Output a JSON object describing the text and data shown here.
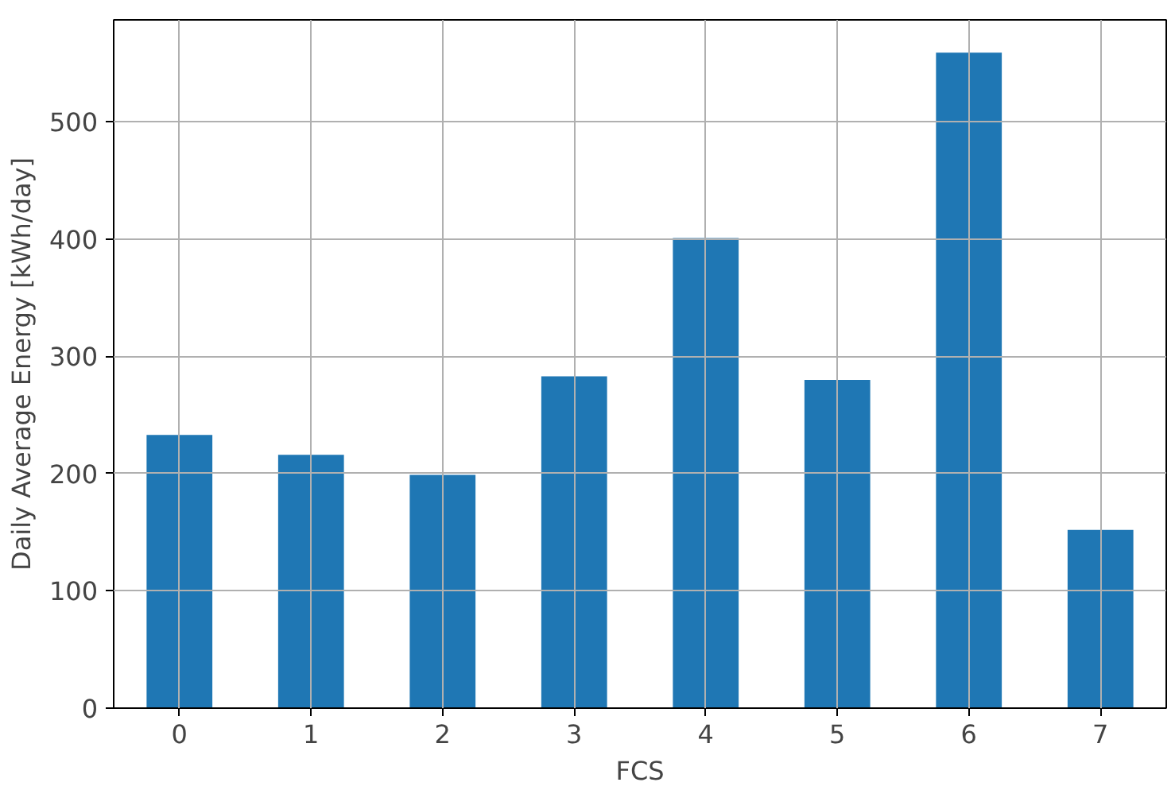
{
  "chart_data": {
    "type": "bar",
    "xlabel": "FCS",
    "ylabel": "Daily Average Energy [kWh/day]",
    "categories": [
      "0",
      "1",
      "2",
      "3",
      "4",
      "5",
      "6",
      "7"
    ],
    "values": [
      233,
      216,
      199,
      283,
      401,
      280,
      559,
      152
    ],
    "color": "#1f77b4",
    "ylim": [
      0,
      587
    ],
    "yticks": [
      0,
      100,
      200,
      300,
      400,
      500
    ],
    "grid": true
  }
}
